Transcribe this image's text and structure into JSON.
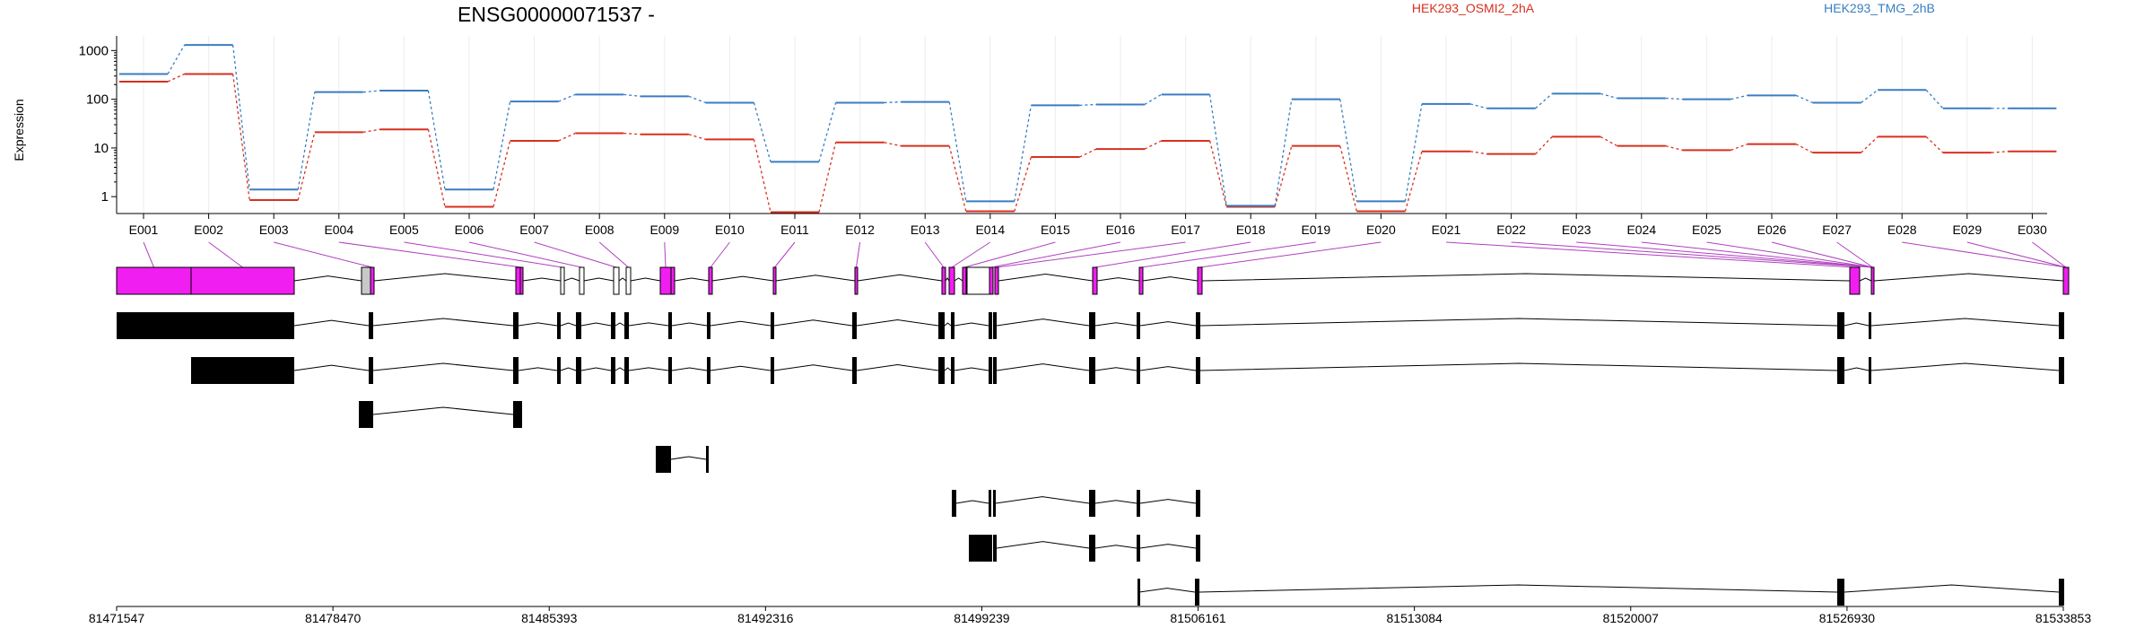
{
  "chart_data": {
    "type": "line",
    "title": "ENSG00000071537 -",
    "xlabel": "",
    "ylabel": "Expression",
    "y_scale": "log",
    "ylim": [
      0.45,
      2000
    ],
    "y_ticks": [
      1,
      10,
      100,
      1000
    ],
    "y_tick_labels": [
      "1",
      "10",
      "100",
      "1000"
    ],
    "grid": "vertical light lines at exon centers",
    "legend_position": "top-right",
    "categories": [
      "E001",
      "E002",
      "E003",
      "E004",
      "E005",
      "E006",
      "E007",
      "E008",
      "E009",
      "E010",
      "E011",
      "E012",
      "E013",
      "E014",
      "E015",
      "E016",
      "E017",
      "E018",
      "E019",
      "E020",
      "E021",
      "E022",
      "E023",
      "E024",
      "E025",
      "E026",
      "E027",
      "E028",
      "E029",
      "E030"
    ],
    "series": [
      {
        "name": "HEK293_OSMI2_2hA",
        "color": "#d7301f",
        "values": [
          230,
          330,
          0.85,
          21,
          24,
          0.62,
          14,
          20,
          19,
          15,
          0.48,
          13,
          11,
          0.5,
          6.5,
          9.5,
          14,
          0.62,
          11,
          0.5,
          8.5,
          7.5,
          17,
          11,
          9,
          12,
          8,
          17,
          8,
          8.5
        ]
      },
      {
        "name": "HEK293_TMG_2hB",
        "color": "#3a7dc1",
        "values": [
          330,
          1300,
          1.4,
          140,
          150,
          1.4,
          90,
          125,
          115,
          85,
          5.2,
          85,
          88,
          0.8,
          75,
          78,
          125,
          0.65,
          100,
          0.8,
          80,
          65,
          130,
          105,
          100,
          120,
          85,
          155,
          65,
          65
        ]
      }
    ],
    "genomic_axis": {
      "tick_labels": [
        "81471547",
        "81478470",
        "81485393",
        "81492316",
        "81499239",
        "81506161",
        "81513084",
        "81520007",
        "81526930",
        "81533853"
      ]
    }
  },
  "colors": {
    "exon_tested": "#f01ef0",
    "exon_untested": "#c8c8c8",
    "connector": "#b040c0",
    "transcript": "#000000"
  }
}
